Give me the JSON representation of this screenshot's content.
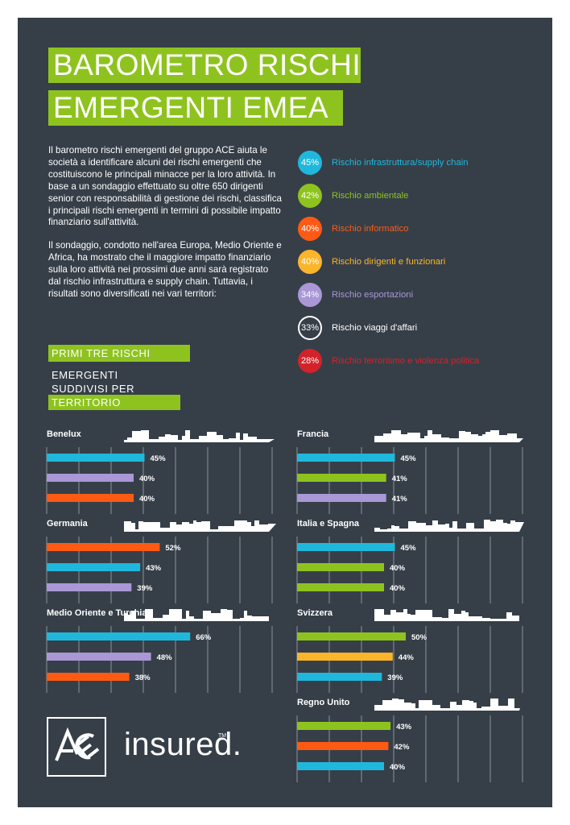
{
  "title": {
    "line1": "BAROMETRO RISCHI",
    "line2": "EMERGENTI EMEA"
  },
  "intro": {
    "p1": "Il barometro rischi emergenti del gruppo ACE aiuta le società a identificare alcuni dei  rischi emergenti che costituiscono le principali minacce per la loro attività. In base a un sondaggio effettuato su oltre 650 dirigenti senior con responsabilità di gestione dei rischi, classifica i principali rischi emergenti in termini di possibile impatto finanziario sull'attività.",
    "p2": "Il sondaggio, condotto nell'area Europa, Medio Oriente e Africa, ha mostrato che il maggiore impatto finanziario sulla loro attività nei prossimi due anni sarà registrato dal rischio infrastruttura e supply chain.  Tuttavia, i risultati sono diversificati nei vari territori:"
  },
  "colors": {
    "infrastruttura": "#1fb8dc",
    "ambientale": "#8ec31f",
    "informatico": "#ff5a13",
    "dirigenti": "#fbb52b",
    "esportazioni": "#a997d6",
    "viaggi": "#ffffff",
    "terrorismo": "#d2232a",
    "background": "#363f48"
  },
  "risks": [
    {
      "pct": "45%",
      "label": "Rischio infrastruttura/supply chain",
      "color": "#1fb8dc"
    },
    {
      "pct": "42%",
      "label": "Rischio ambientale",
      "color": "#8ec31f"
    },
    {
      "pct": "40%",
      "label": "Rischio informatico",
      "color": "#ff5a13"
    },
    {
      "pct": "40%",
      "label": "Rischio dirigenti e funzionari",
      "color": "#fbb52b"
    },
    {
      "pct": "34%",
      "label": "Rischio esportazioni",
      "color": "#a997d6"
    },
    {
      "pct": "33%",
      "label": "Rischio viaggi d'affari",
      "color": "#ffffff"
    },
    {
      "pct": "28%",
      "label": "Rischio terrorismo e violenza politica",
      "color": "#d2232a"
    }
  ],
  "subtitle": {
    "line1": "PRIMI TRE RISCHI",
    "line2": "EMERGENTI",
    "line3": "SUDDIVISI PER",
    "line4": "TERRITORIO"
  },
  "chart_data": [
    {
      "type": "bar",
      "title": "Benelux",
      "categories": [
        "Rischio infrastruttura/supply chain",
        "Rischio esportazioni",
        "Rischio informatico"
      ],
      "values": [
        45,
        40,
        40
      ],
      "labels": [
        "45%",
        "40%",
        "40%"
      ],
      "colors": [
        "#1fb8dc",
        "#a997d6",
        "#ff5a13"
      ]
    },
    {
      "type": "bar",
      "title": "Francia",
      "categories": [
        "Rischio infrastruttura/supply chain",
        "Rischio ambientale",
        "Rischio esportazioni"
      ],
      "values": [
        45,
        41,
        41
      ],
      "labels": [
        "45%",
        "41%",
        "41%"
      ],
      "colors": [
        "#1fb8dc",
        "#8ec31f",
        "#a997d6"
      ]
    },
    {
      "type": "bar",
      "title": "Germania",
      "categories": [
        "Rischio informatico",
        "Rischio infrastruttura/supply chain",
        "Rischio esportazioni"
      ],
      "values": [
        52,
        43,
        39
      ],
      "labels": [
        "52%",
        "43%",
        "39%"
      ],
      "colors": [
        "#ff5a13",
        "#1fb8dc",
        "#a997d6"
      ]
    },
    {
      "type": "bar",
      "title": "Italia e Spagna",
      "categories": [
        "Rischio infrastruttura/supply chain",
        "Rischio ambientale",
        "Rischio ambientale"
      ],
      "values": [
        45,
        40,
        40
      ],
      "labels": [
        "45%",
        "40%",
        "40%"
      ],
      "colors": [
        "#1fb8dc",
        "#8ec31f",
        "#8ec31f"
      ]
    },
    {
      "type": "bar",
      "title": "Medio Oriente e Turchia",
      "categories": [
        "Rischio infrastruttura/supply chain",
        "Rischio esportazioni",
        "Rischio informatico"
      ],
      "values": [
        66,
        48,
        38
      ],
      "labels": [
        "66%",
        "48%",
        "38%"
      ],
      "colors": [
        "#1fb8dc",
        "#a997d6",
        "#ff5a13"
      ]
    },
    {
      "type": "bar",
      "title": "Svizzera",
      "categories": [
        "Rischio ambientale",
        "Rischio dirigenti e funzionari",
        "Rischio infrastruttura/supply chain"
      ],
      "values": [
        50,
        44,
        39
      ],
      "labels": [
        "50%",
        "44%",
        "39%"
      ],
      "colors": [
        "#8ec31f",
        "#fbb52b",
        "#1fb8dc"
      ]
    },
    {
      "type": "bar",
      "title": "Regno Unito",
      "categories": [
        "Rischio ambientale",
        "Rischio informatico",
        "Rischio infrastruttura/supply chain"
      ],
      "values": [
        43,
        42,
        40
      ],
      "labels": [
        "43%",
        "42%",
        "40%"
      ],
      "colors": [
        "#8ec31f",
        "#ff5a13",
        "#1fb8dc"
      ]
    }
  ],
  "logo": {
    "brand": "ACE",
    "tagline": "insured.",
    "trademark": "TM"
  }
}
